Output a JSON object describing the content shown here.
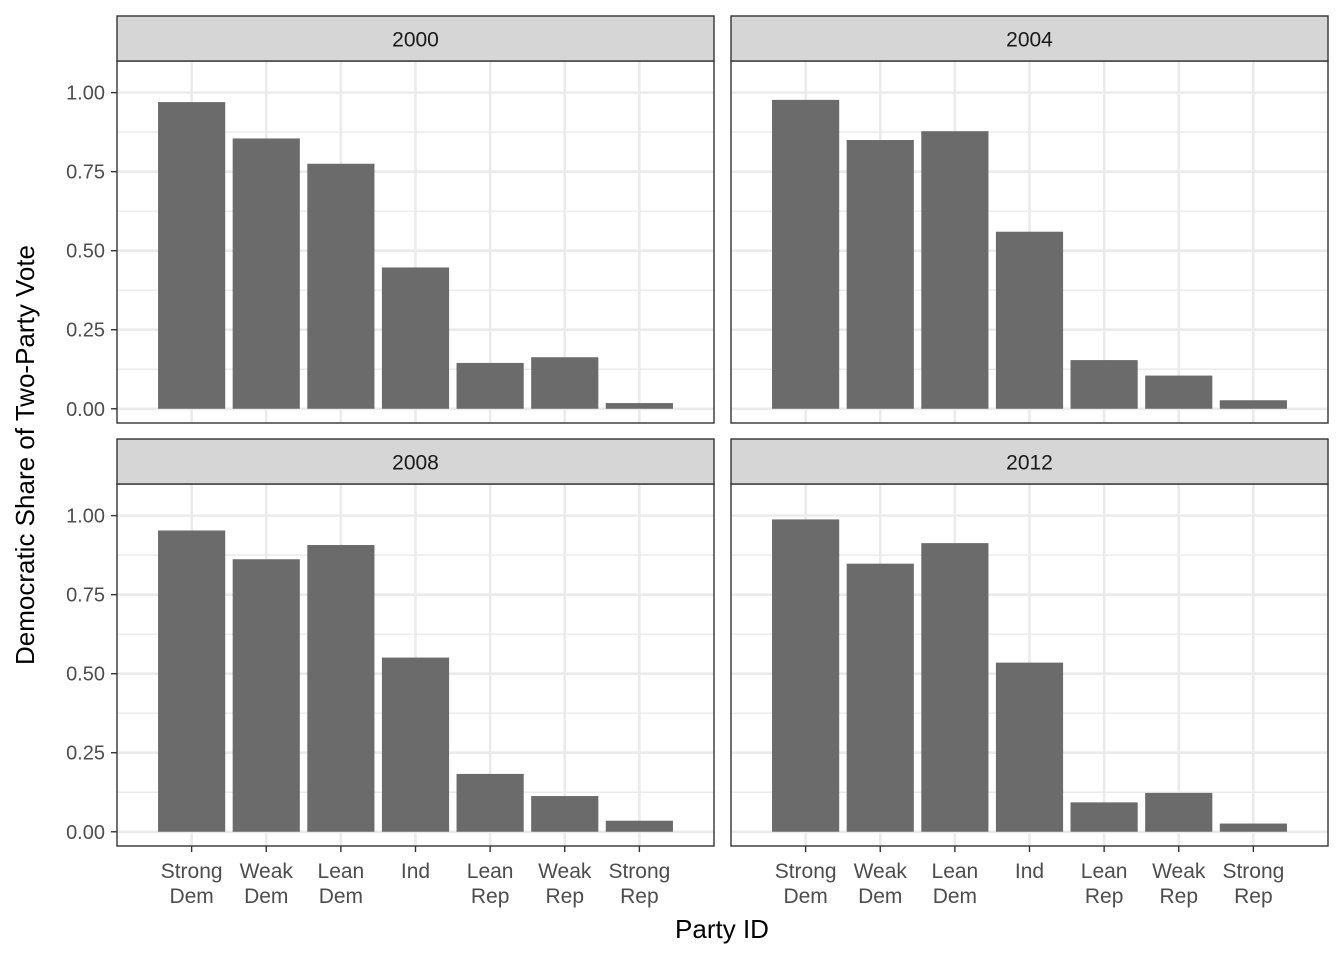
{
  "chart_data": {
    "type": "bar",
    "xlabel": "Party ID",
    "ylabel": "Democratic Share of Two-Party Vote",
    "ylim": [
      -0.045,
      1.1
    ],
    "yticks": [
      0.0,
      0.25,
      0.5,
      0.75,
      1.0
    ],
    "ytick_labels": [
      "0.00",
      "0.25",
      "0.50",
      "0.75",
      "1.00"
    ],
    "grid": true,
    "categories": [
      [
        "Strong",
        "Dem"
      ],
      [
        "Weak",
        "Dem"
      ],
      [
        "Lean",
        "Dem"
      ],
      [
        "Ind"
      ],
      [
        "Lean",
        "Rep"
      ],
      [
        "Weak",
        "Rep"
      ],
      [
        "Strong",
        "Rep"
      ]
    ],
    "panels": [
      {
        "title": "2000",
        "values": [
          0.97,
          0.855,
          0.775,
          0.447,
          0.145,
          0.163,
          0.018
        ]
      },
      {
        "title": "2004",
        "values": [
          0.977,
          0.85,
          0.878,
          0.56,
          0.154,
          0.105,
          0.027
        ]
      },
      {
        "title": "2008",
        "values": [
          0.953,
          0.862,
          0.907,
          0.551,
          0.183,
          0.113,
          0.035
        ]
      },
      {
        "title": "2012",
        "values": [
          0.988,
          0.848,
          0.913,
          0.535,
          0.093,
          0.123,
          0.026
        ]
      }
    ],
    "colors": {
      "bar": "#6b6b6b",
      "strip": "#d6d6d6",
      "grid": "#ebebeb",
      "border": "#333333",
      "text": "#4d4d4d"
    }
  }
}
